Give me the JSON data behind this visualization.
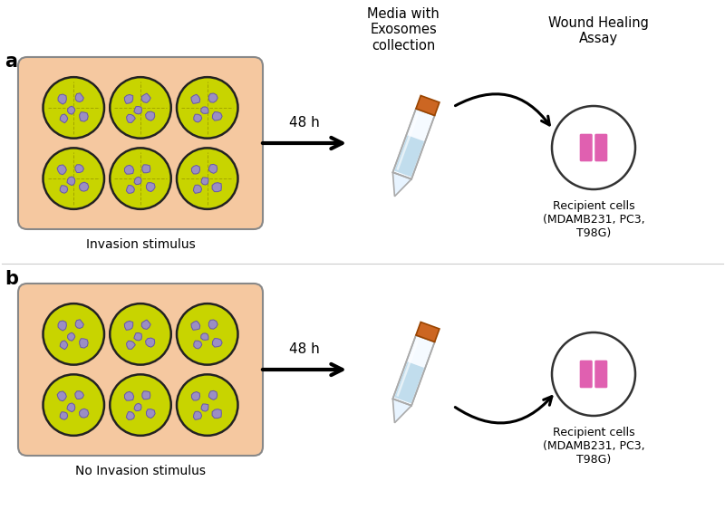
{
  "bg_color": "#ffffff",
  "panel_bg": "#f5c8a0",
  "well_bg": "#c8d400",
  "well_border": "#222222",
  "cell_color": "#9b8ec4",
  "tube_cap_color": "#cc6622",
  "tube_liquid_color": "#b8d8ea",
  "circle_bg": "#ffffff",
  "wound_color": "#e060b0",
  "arrow_color": "#111111",
  "label_a": "a",
  "label_b": "b",
  "text_48h": "48 h",
  "text_media": "Media with\nExosomes\ncollection",
  "text_wound": "Wound Healing\nAssay",
  "text_recipient_a": "Recipient cells\n(MDAMB231, PC3,\nT98G)",
  "text_recipient_b": "Recipient cells\n(MDAMB231, PC3,\nT98G)",
  "text_invasion": "Invasion stimulus",
  "text_no_invasion": "No Invasion stimulus"
}
